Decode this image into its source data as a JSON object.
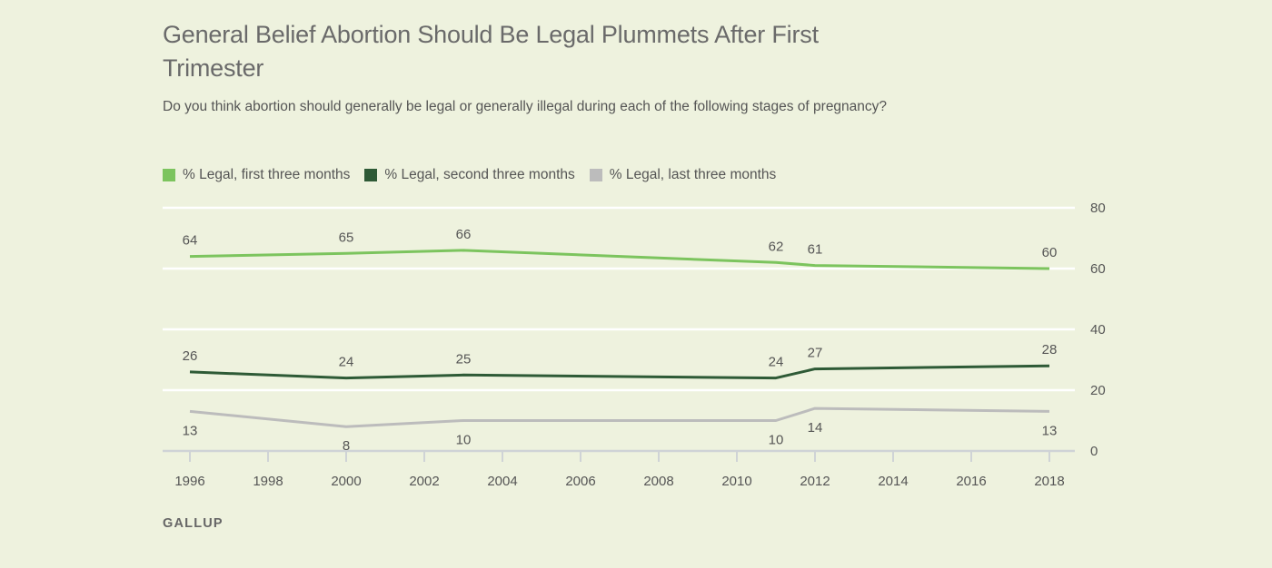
{
  "title": "General Belief Abortion Should Be Legal Plummets After First Trimester",
  "subtitle": "Do you think abortion should generally be legal or generally illegal during each of the following stages of pregnancy?",
  "source": "GALLUP",
  "colors": {
    "background": "#eef2de",
    "first": "#7cc45e",
    "second": "#2e5a36",
    "third": "#bcbcbc",
    "grid": "#ffffff",
    "axis": "#cfd3d6"
  },
  "chart_data": {
    "type": "line",
    "title": "General Belief Abortion Should Be Legal Plummets After First Trimester",
    "subtitle": "Do you think abortion should generally be legal or generally illegal during each of the following stages of pregnancy?",
    "xlabel": "",
    "ylabel": "",
    "xlim": [
      1996,
      2018
    ],
    "ylim": [
      0,
      80
    ],
    "x_ticks": [
      "1996",
      "1998",
      "2000",
      "2002",
      "2004",
      "2006",
      "2008",
      "2010",
      "2012",
      "2014",
      "2016",
      "2018"
    ],
    "y_ticks": [
      "0",
      "20",
      "40",
      "60",
      "80"
    ],
    "y_axis_side": "right",
    "grid": true,
    "legend_position": "top-left",
    "series": [
      {
        "name": "% Legal, first three months",
        "color": "#7cc45e",
        "label_position": "above",
        "points": [
          [
            1996,
            64
          ],
          [
            2000,
            65
          ],
          [
            2003,
            66
          ],
          [
            2011,
            62
          ],
          [
            2012,
            61
          ],
          [
            2018,
            60
          ]
        ]
      },
      {
        "name": "% Legal, second three months",
        "color": "#2e5a36",
        "label_position": "above",
        "points": [
          [
            1996,
            26
          ],
          [
            2000,
            24
          ],
          [
            2003,
            25
          ],
          [
            2011,
            24
          ],
          [
            2012,
            27
          ],
          [
            2018,
            28
          ]
        ]
      },
      {
        "name": "% Legal, last three months",
        "color": "#bcbcbc",
        "label_position": "below",
        "points": [
          [
            1996,
            13
          ],
          [
            2000,
            8
          ],
          [
            2003,
            10
          ],
          [
            2011,
            10
          ],
          [
            2012,
            14
          ],
          [
            2018,
            13
          ]
        ]
      }
    ]
  }
}
